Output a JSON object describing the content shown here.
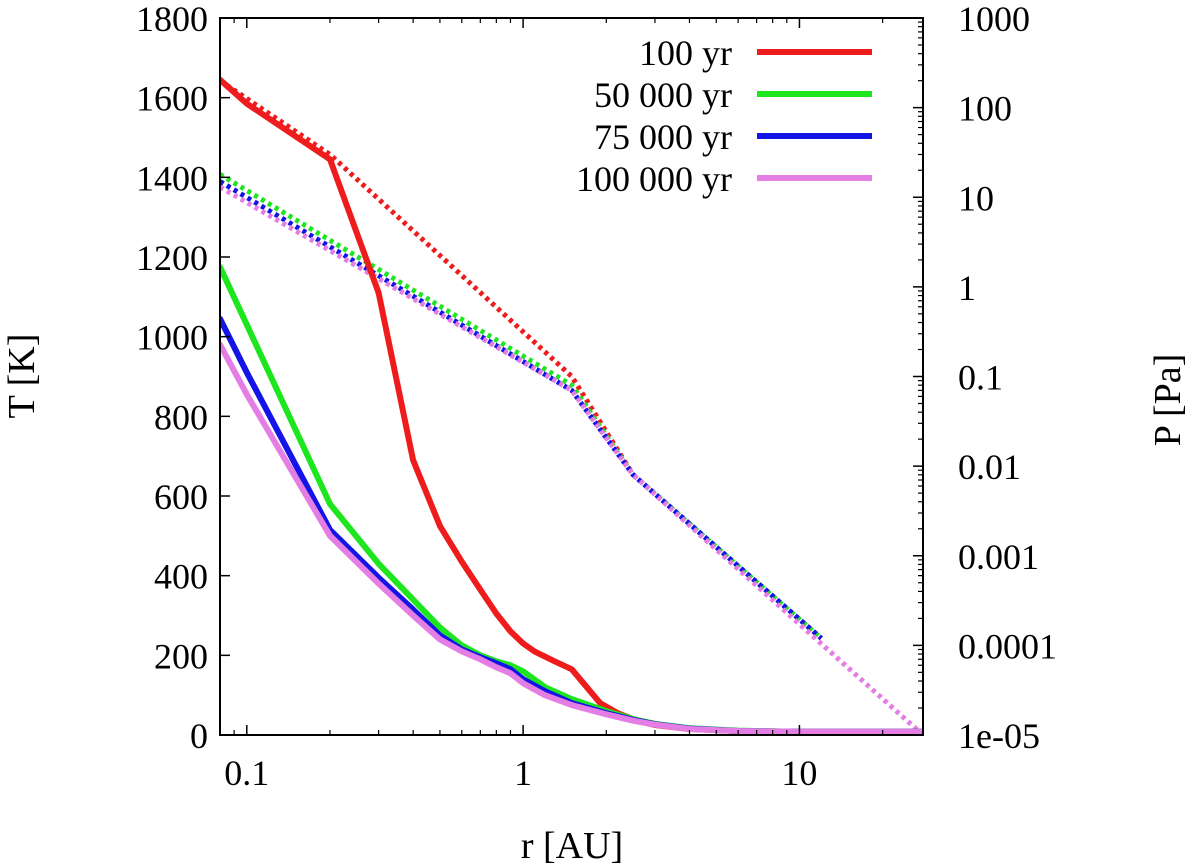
{
  "chart_data": {
    "type": "line",
    "xlabel": "r [AU]",
    "ylabel": "T [K]",
    "y2label": "P [Pa]",
    "x_scale": "log",
    "y2_scale": "log",
    "xlim": [
      0.08,
      28
    ],
    "ylim": [
      0,
      1800
    ],
    "y2lim": [
      1e-05,
      1000
    ],
    "grid": false,
    "legend_position": "top-right",
    "x_ticks": [
      0.1,
      1,
      10
    ],
    "x_tick_labels": [
      "0.1",
      "1",
      "10"
    ],
    "y_ticks": [
      0,
      200,
      400,
      600,
      800,
      1000,
      1200,
      1400,
      1600,
      1800
    ],
    "y_tick_labels": [
      "0",
      "200",
      "400",
      "600",
      "800",
      "1000",
      "1200",
      "1400",
      "1600",
      "1800"
    ],
    "y2_ticks": [
      1e-05,
      0.0001,
      0.001,
      0.01,
      0.1,
      1,
      10,
      100,
      1000
    ],
    "y2_tick_labels": [
      "1e-05",
      "0.0001",
      "0.001",
      "0.01",
      "0.1",
      "1",
      "10",
      "100",
      "1000"
    ],
    "series": [
      {
        "name": "100 yr",
        "color": "#ee1c1c",
        "temperature": {
          "x": [
            0.08,
            0.1,
            0.2,
            0.3,
            0.4,
            0.5,
            0.6,
            0.7,
            0.8,
            0.9,
            1.0,
            1.1,
            1.3,
            1.5,
            1.7,
            1.9,
            2.2,
            2.6,
            3.0,
            4.0,
            6.0,
            10.0,
            28.0
          ],
          "y": [
            1645,
            1585,
            1445,
            1110,
            690,
            525,
            435,
            365,
            305,
            260,
            230,
            210,
            185,
            165,
            120,
            80,
            55,
            35,
            25,
            15,
            10,
            8,
            8
          ]
        },
        "pressure": {
          "x": [
            0.08,
            0.2,
            1.5,
            2.5,
            12.0
          ],
          "y": [
            200,
            30,
            0.1,
            0.008,
            0.00012
          ]
        }
      },
      {
        "name": "50 000 yr",
        "color": "#1ee61e",
        "temperature": {
          "x": [
            0.08,
            0.1,
            0.2,
            0.3,
            0.4,
            0.5,
            0.6,
            0.7,
            0.8,
            0.9,
            1.0,
            1.2,
            1.5,
            2.0,
            2.5,
            3.0,
            4.0,
            6.0,
            10.0,
            28.0
          ],
          "y": [
            1175,
            1030,
            580,
            430,
            340,
            270,
            225,
            200,
            185,
            175,
            160,
            120,
            90,
            60,
            40,
            28,
            17,
            11,
            8,
            8
          ]
        },
        "pressure": {
          "x": [
            0.08,
            1.5,
            2.5,
            12.0
          ],
          "y": [
            18,
            0.08,
            0.008,
            0.00012
          ]
        }
      },
      {
        "name": "75 000 yr",
        "color": "#1414e6",
        "temperature": {
          "x": [
            0.08,
            0.1,
            0.2,
            0.3,
            0.4,
            0.5,
            0.6,
            0.7,
            0.8,
            0.9,
            1.0,
            1.2,
            1.5,
            2.0,
            2.5,
            3.0,
            4.0,
            6.0,
            10.0,
            28.0
          ],
          "y": [
            1045,
            910,
            515,
            395,
            315,
            250,
            215,
            195,
            180,
            165,
            140,
            110,
            80,
            55,
            38,
            27,
            16,
            10,
            8,
            8
          ]
        },
        "pressure": {
          "x": [
            0.08,
            1.5,
            2.5,
            12.0
          ],
          "y": [
            15,
            0.07,
            0.008,
            0.00012
          ]
        }
      },
      {
        "name": "100 000 yr",
        "color": "#e47de4",
        "temperature": {
          "x": [
            0.08,
            0.1,
            0.2,
            0.3,
            0.4,
            0.5,
            0.6,
            0.7,
            0.8,
            0.9,
            1.0,
            1.2,
            1.5,
            2.0,
            2.5,
            3.0,
            4.0,
            6.0,
            10.0,
            28.0
          ],
          "y": [
            980,
            855,
            500,
            380,
            300,
            240,
            210,
            190,
            170,
            155,
            130,
            100,
            75,
            52,
            36,
            26,
            15,
            10,
            8,
            8
          ]
        },
        "pressure": {
          "x": [
            0.08,
            1.5,
            2.5,
            28.0
          ],
          "y": [
            13,
            0.07,
            0.008,
            1e-05
          ]
        }
      }
    ]
  }
}
